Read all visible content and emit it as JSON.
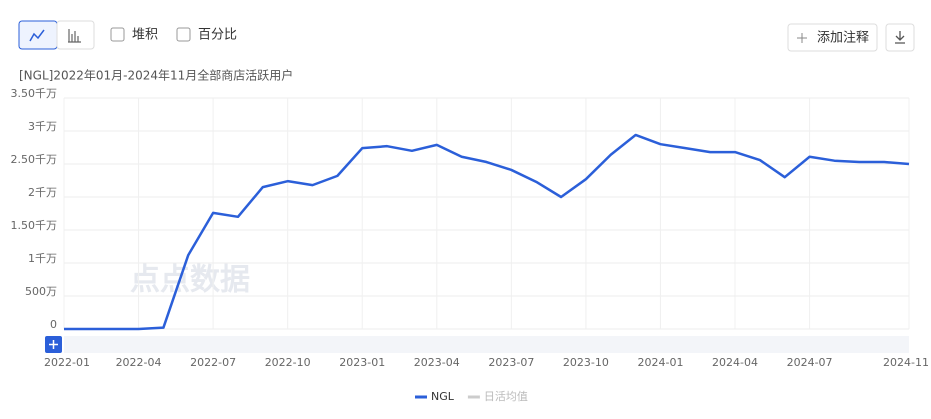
{
  "toolbar": {
    "stack": "堆积",
    "percent": "百分比",
    "annotate": "添加注释"
  },
  "watermark": "点点数据",
  "chart_data": {
    "type": "line",
    "title": "[NGL]2022年01月-2024年11月全部商店活跃用户",
    "categories": [
      "2022-01",
      null,
      null,
      "2022-04",
      null,
      null,
      "2022-07",
      null,
      null,
      "2022-10",
      null,
      null,
      "2023-01",
      null,
      null,
      "2023-04",
      null,
      null,
      "2023-07",
      null,
      null,
      "2023-10",
      null,
      null,
      "2024-01",
      null,
      null,
      "2024-04",
      null,
      null,
      "2024-07",
      null,
      null,
      null,
      "2024-11"
    ],
    "series": [
      {
        "name": "NGL",
        "color": "#2b5fd9",
        "values": [
          0,
          0,
          0,
          0,
          200000,
          11200000,
          17600000,
          17000000,
          21500000,
          22400000,
          21800000,
          23200000,
          27400000,
          27700000,
          27000000,
          27900000,
          26100000,
          25300000,
          24100000,
          22300000,
          20000000,
          22700000,
          26400000,
          29400000,
          28000000,
          27400000,
          26800000,
          26800000,
          25600000,
          23000000,
          26100000,
          25500000,
          25300000,
          25300000,
          25000000
        ]
      }
    ],
    "legend_inactive": [
      "日活均值"
    ],
    "ylim": [
      0,
      35000000
    ],
    "yticks": [
      0,
      {
        "value": 5000000,
        "label": "500万"
      },
      {
        "value": 10000000,
        "label": "1千万"
      },
      {
        "value": 15000000,
        "label": "1.50千万"
      },
      {
        "value": 20000000,
        "label": "2千万"
      },
      {
        "value": 25000000,
        "label": "2.50千万"
      },
      {
        "value": 30000000,
        "label": "3千万"
      },
      {
        "value": 35000000,
        "label": "3.50千万"
      }
    ],
    "grid": true
  }
}
